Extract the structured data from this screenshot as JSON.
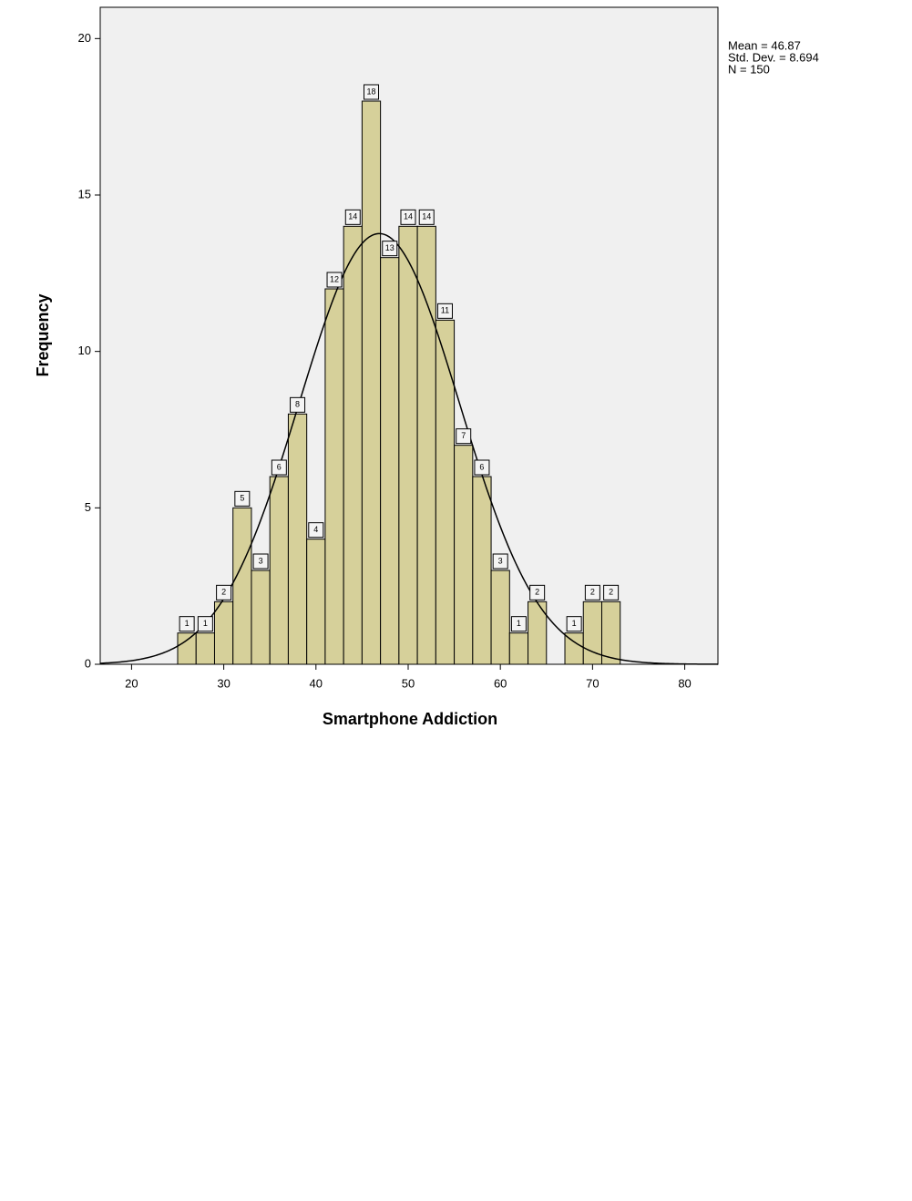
{
  "chart_data": {
    "type": "histogram",
    "x_label": "Smartphone Addiction",
    "y_label": "Frequency",
    "bins": [
      25,
      27,
      29,
      31,
      33,
      35,
      37,
      39,
      41,
      43,
      45,
      47,
      49,
      51,
      53,
      55,
      57,
      59,
      61,
      63,
      65,
      67,
      69,
      71,
      73
    ],
    "values": [
      1,
      1,
      2,
      5,
      3,
      6,
      8,
      4,
      12,
      14,
      18,
      13,
      14,
      14,
      11,
      7,
      6,
      3,
      1,
      2,
      0,
      1,
      2,
      2
    ],
    "color": "#d6d09a",
    "xlim": [
      16.6,
      83.6
    ],
    "xticks": [
      20,
      30,
      40,
      50,
      60,
      70,
      80
    ],
    "ylim": [
      0,
      21
    ],
    "yticks": [
      0,
      5,
      10,
      15,
      20
    ],
    "stats": [
      {
        "value": 46.87,
        "label": "Mean = 46.87"
      },
      {
        "value": 8.694,
        "label": "Std. Dev. = 8.694"
      },
      {
        "value": 150,
        "label": "N = 150"
      }
    ],
    "normal_curve": true
  }
}
